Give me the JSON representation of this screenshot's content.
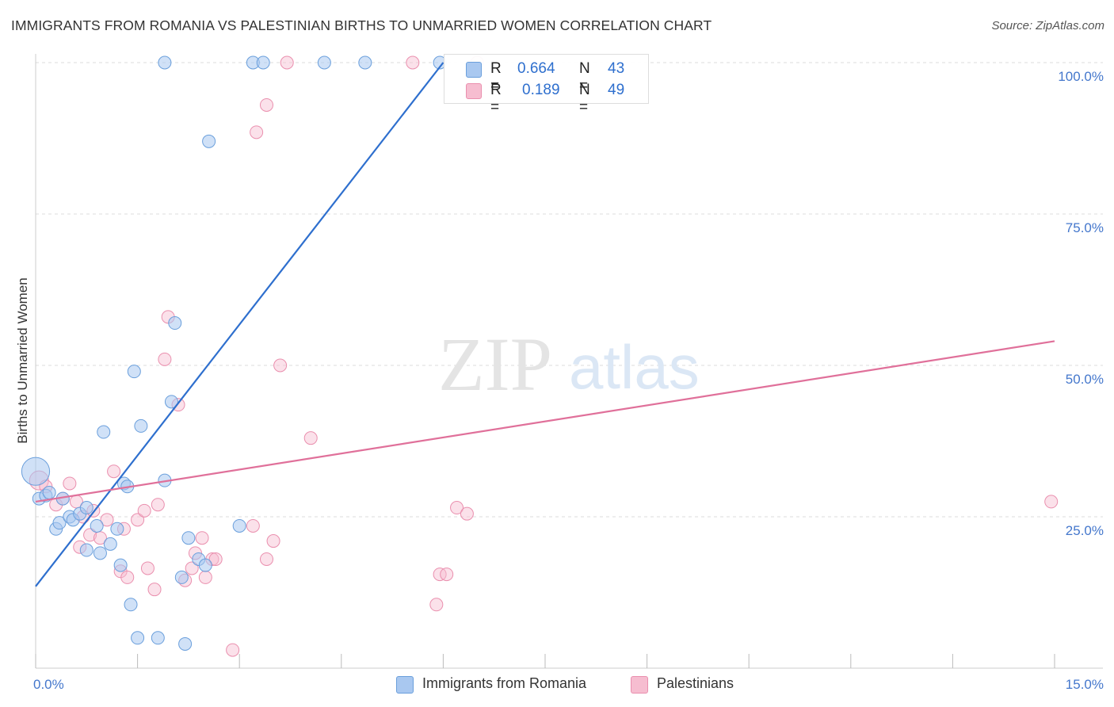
{
  "title": "IMMIGRANTS FROM ROMANIA VS PALESTINIAN BIRTHS TO UNMARRIED WOMEN CORRELATION CHART",
  "source": "Source: ZipAtlas.com",
  "watermark": {
    "zip": "ZIP",
    "atlas": "atlas"
  },
  "legend": {
    "rows": [
      {
        "r_label": "R =",
        "r_value": "0.664",
        "n_label": "N =",
        "n_value": "43"
      },
      {
        "r_label": "R =",
        "r_value": "0.189",
        "n_label": "N =",
        "n_value": "49"
      }
    ]
  },
  "bottom_legend": [
    "Immigrants from Romania",
    "Palestinians"
  ],
  "colors": {
    "blue_fill": "#a9c8f0",
    "blue_stroke": "#6a9fdc",
    "blue_line": "#2e6fce",
    "pink_fill": "#f6bdd0",
    "pink_stroke": "#ea8fae",
    "pink_line": "#e0709a",
    "axis_text": "#4477cc",
    "grid": "#dddddd"
  },
  "chart_data": {
    "type": "scatter",
    "xlabel": "",
    "ylabel": "Births to Unmarried Women",
    "xlim": [
      0,
      15
    ],
    "ylim": [
      0,
      100
    ],
    "x_tick_labels": [
      "0.0%",
      "15.0%"
    ],
    "y_tick_labels": [
      "25.0%",
      "50.0%",
      "75.0%",
      "100.0%"
    ],
    "y_ticks": [
      25,
      50,
      75,
      100
    ],
    "grid": "horizontal dashed",
    "series": [
      {
        "name": "Immigrants from Romania",
        "trend": {
          "x": [
            0,
            6.0
          ],
          "y": [
            13.5,
            100
          ]
        },
        "points": [
          [
            0.0,
            32.5,
            2.2
          ],
          [
            0.05,
            28.0,
            1
          ],
          [
            0.15,
            28.5,
            1
          ],
          [
            0.2,
            29.0,
            1
          ],
          [
            0.3,
            23.0,
            1
          ],
          [
            0.35,
            24.0,
            1
          ],
          [
            0.4,
            28.0,
            1
          ],
          [
            0.5,
            25.0,
            1
          ],
          [
            0.55,
            24.5,
            1
          ],
          [
            0.65,
            25.5,
            1
          ],
          [
            0.75,
            26.5,
            1
          ],
          [
            0.75,
            19.5,
            1
          ],
          [
            0.9,
            23.5,
            1
          ],
          [
            0.95,
            19.0,
            1
          ],
          [
            1.0,
            39.0,
            1
          ],
          [
            1.1,
            20.5,
            1
          ],
          [
            1.2,
            23.0,
            1
          ],
          [
            1.25,
            17.0,
            1
          ],
          [
            1.3,
            30.5,
            1
          ],
          [
            1.35,
            30.0,
            1
          ],
          [
            1.4,
            10.5,
            1
          ],
          [
            1.45,
            49.0,
            1
          ],
          [
            1.5,
            5.0,
            1
          ],
          [
            1.55,
            40.0,
            1
          ],
          [
            1.8,
            5.0,
            1
          ],
          [
            1.9,
            31.0,
            1
          ],
          [
            1.9,
            100.0,
            1
          ],
          [
            2.0,
            44.0,
            1
          ],
          [
            2.05,
            57.0,
            1
          ],
          [
            2.15,
            15.0,
            1
          ],
          [
            2.2,
            4.0,
            1
          ],
          [
            2.25,
            21.5,
            1
          ],
          [
            2.4,
            18.0,
            1
          ],
          [
            2.5,
            17.0,
            1
          ],
          [
            2.55,
            87.0,
            1
          ],
          [
            3.0,
            23.5,
            1
          ],
          [
            3.2,
            100.0,
            1
          ],
          [
            3.35,
            100.0,
            1
          ],
          [
            4.25,
            100.0,
            1
          ],
          [
            4.85,
            100.0,
            1
          ],
          [
            5.95,
            100.0,
            1
          ]
        ]
      },
      {
        "name": "Palestinians",
        "trend": {
          "x": [
            0,
            15
          ],
          "y": [
            27.5,
            54
          ]
        },
        "points": [
          [
            0.05,
            31.0,
            1.5
          ],
          [
            0.15,
            30.0,
            1
          ],
          [
            0.3,
            27.0,
            1
          ],
          [
            0.4,
            28.0,
            1
          ],
          [
            0.5,
            30.5,
            1
          ],
          [
            0.6,
            27.5,
            1
          ],
          [
            0.65,
            20.0,
            1
          ],
          [
            0.7,
            25.0,
            1
          ],
          [
            0.8,
            22.0,
            1
          ],
          [
            0.85,
            26.0,
            1
          ],
          [
            0.95,
            21.5,
            1
          ],
          [
            1.05,
            24.5,
            1
          ],
          [
            1.15,
            32.5,
            1
          ],
          [
            1.25,
            16.0,
            1
          ],
          [
            1.3,
            23.0,
            1
          ],
          [
            1.35,
            15.0,
            1
          ],
          [
            1.5,
            24.5,
            1
          ],
          [
            1.6,
            26.0,
            1
          ],
          [
            1.65,
            16.5,
            1
          ],
          [
            1.75,
            13.0,
            1
          ],
          [
            1.8,
            27.0,
            1
          ],
          [
            1.9,
            51.0,
            1
          ],
          [
            1.95,
            58.0,
            1
          ],
          [
            2.1,
            43.5,
            1
          ],
          [
            2.2,
            14.5,
            1
          ],
          [
            2.3,
            16.5,
            1
          ],
          [
            2.35,
            19.0,
            1
          ],
          [
            2.45,
            21.5,
            1
          ],
          [
            2.5,
            15.0,
            1
          ],
          [
            2.6,
            18.0,
            1
          ],
          [
            2.65,
            18.0,
            1
          ],
          [
            2.9,
            3.0,
            1
          ],
          [
            3.2,
            23.5,
            1
          ],
          [
            3.25,
            88.5,
            1
          ],
          [
            3.4,
            93.0,
            1
          ],
          [
            3.4,
            18.0,
            1
          ],
          [
            3.5,
            21.0,
            1
          ],
          [
            3.6,
            50.0,
            1
          ],
          [
            3.7,
            100.0,
            1
          ],
          [
            4.05,
            38.0,
            1
          ],
          [
            5.55,
            100.0,
            1
          ],
          [
            5.9,
            10.5,
            1
          ],
          [
            5.95,
            15.5,
            1
          ],
          [
            6.05,
            15.5,
            1
          ],
          [
            6.2,
            26.5,
            1
          ],
          [
            6.35,
            25.5,
            1
          ],
          [
            6.5,
            100.0,
            1
          ],
          [
            14.95,
            27.5,
            1
          ]
        ]
      }
    ]
  }
}
